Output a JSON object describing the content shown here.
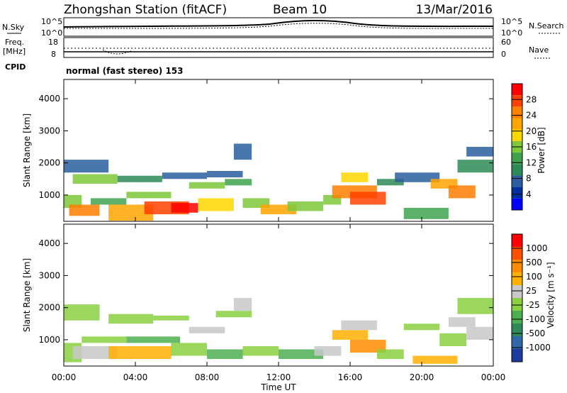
{
  "header": {
    "station": "Zhongshan Station (fitACF)",
    "beam": "Beam 10",
    "date": "13/Mar/2016"
  },
  "summary": {
    "nsky_label": "N.Sky",
    "nsky_ticks": [
      "10^5",
      "10^0"
    ],
    "nsearch_label": "N.Search",
    "nsearch_ticks": [
      "10^5",
      "10^0"
    ],
    "freq_label_line1": "Freq.",
    "freq_label_line2": "[MHz]",
    "freq_ticks": [
      "18",
      "8"
    ],
    "nave_label": "Nave",
    "nave_ticks": [
      "60",
      "0"
    ],
    "cpid_label": "CPID",
    "cpid_text": "normal (fast stereo) 153"
  },
  "power_colorbar": {
    "label": "Power [dB]",
    "ticks": [
      "28",
      "24",
      "20",
      "16",
      "12",
      "8",
      "4"
    ],
    "colors": [
      "#0000ff",
      "#0030a0",
      "#2a5ea0",
      "#2e8b57",
      "#3fa34d",
      "#7cc83a",
      "#ffd700",
      "#ffa500",
      "#ff7f00",
      "#ff4000",
      "#ff0000"
    ]
  },
  "velocity_colorbar": {
    "label": "Velocity [m s⁻¹]",
    "ticks": [
      "1000",
      "500",
      "100",
      "25",
      "-25",
      "-100",
      "-500",
      "-1000"
    ],
    "colors": [
      "#1e3ca0",
      "#2e6aa8",
      "#2e8b57",
      "#4caf50",
      "#8ad040",
      "#c8c8c8",
      "#ffb000",
      "#ff8c00",
      "#ff5000",
      "#ff0000"
    ]
  },
  "axes": {
    "ylabel": "Slant Range [km]",
    "yticks": [
      "1000",
      "2000",
      "3000",
      "4000"
    ],
    "xticks": [
      "00:00",
      "04:00",
      "08:00",
      "12:00",
      "16:00",
      "20:00",
      "00:00"
    ],
    "xlabel": "Time UT"
  },
  "chart_data": [
    {
      "type": "heatmap",
      "name": "power",
      "xlim": [
        0,
        24
      ],
      "ylim": [
        180,
        4600
      ],
      "clim": [
        0,
        30
      ],
      "cells": [
        [
          0.0,
          1.0,
          600,
          1000,
          16
        ],
        [
          0.0,
          2.5,
          1700,
          2100,
          8
        ],
        [
          0.3,
          2.0,
          350,
          700,
          24
        ],
        [
          0.5,
          3.0,
          1350,
          1650,
          14
        ],
        [
          1.5,
          3.5,
          700,
          900,
          12
        ],
        [
          2.5,
          5.0,
          200,
          700,
          20
        ],
        [
          3.0,
          5.5,
          1400,
          1600,
          10
        ],
        [
          3.5,
          6.0,
          900,
          1100,
          16
        ],
        [
          4.5,
          7.0,
          400,
          800,
          26
        ],
        [
          5.5,
          8.0,
          1500,
          1700,
          8
        ],
        [
          6.0,
          7.5,
          450,
          750,
          28
        ],
        [
          7.0,
          9.0,
          1200,
          1400,
          14
        ],
        [
          7.5,
          9.5,
          500,
          900,
          18
        ],
        [
          8.0,
          10.0,
          1550,
          1750,
          8
        ],
        [
          9.0,
          10.5,
          1300,
          1500,
          12
        ],
        [
          9.5,
          10.5,
          2100,
          2600,
          6
        ],
        [
          10.0,
          11.5,
          600,
          900,
          14
        ],
        [
          11.0,
          13.0,
          400,
          700,
          20
        ],
        [
          12.5,
          14.5,
          500,
          800,
          16
        ],
        [
          14.5,
          15.5,
          700,
          1000,
          14
        ],
        [
          15.0,
          17.5,
          900,
          1300,
          22
        ],
        [
          15.5,
          17.0,
          1400,
          1700,
          18
        ],
        [
          16.0,
          18.0,
          700,
          1100,
          26
        ],
        [
          17.5,
          19.0,
          1300,
          1500,
          10
        ],
        [
          18.5,
          21.0,
          1400,
          1700,
          8
        ],
        [
          19.0,
          21.5,
          250,
          600,
          12
        ],
        [
          20.5,
          22.0,
          1200,
          1500,
          20
        ],
        [
          21.5,
          23.0,
          900,
          1300,
          24
        ],
        [
          22.0,
          24.0,
          1700,
          2100,
          10
        ],
        [
          22.5,
          24.0,
          2200,
          2500,
          8
        ]
      ]
    },
    {
      "type": "heatmap",
      "name": "velocity",
      "xlim": [
        0,
        24
      ],
      "ylim": [
        180,
        4600
      ],
      "clim": [
        -1000,
        1000
      ],
      "cells": [
        [
          0.0,
          2.0,
          1600,
          2100,
          10
        ],
        [
          0.0,
          1.0,
          300,
          900,
          100
        ],
        [
          0.5,
          3.0,
          400,
          800,
          -100
        ],
        [
          1.0,
          3.5,
          900,
          1100,
          100
        ],
        [
          2.5,
          5.0,
          1500,
          1800,
          0
        ],
        [
          2.5,
          6.0,
          400,
          800,
          -300
        ],
        [
          3.5,
          6.5,
          900,
          1100,
          200
        ],
        [
          5.0,
          7.0,
          1600,
          1750,
          10
        ],
        [
          6.0,
          8.0,
          500,
          900,
          100
        ],
        [
          7.0,
          9.0,
          1200,
          1400,
          -50
        ],
        [
          8.0,
          10.0,
          400,
          700,
          200
        ],
        [
          8.5,
          10.5,
          1700,
          1900,
          0
        ],
        [
          9.5,
          10.5,
          1900,
          2300,
          -200
        ],
        [
          10.0,
          12.0,
          500,
          800,
          150
        ],
        [
          12.0,
          14.5,
          400,
          700,
          200
        ],
        [
          14.0,
          15.5,
          500,
          800,
          -100
        ],
        [
          15.0,
          17.0,
          1000,
          1300,
          -300
        ],
        [
          15.5,
          17.5,
          1300,
          1600,
          -200
        ],
        [
          16.0,
          18.0,
          600,
          1000,
          -500
        ],
        [
          17.5,
          19.0,
          400,
          700,
          100
        ],
        [
          19.0,
          21.0,
          1300,
          1500,
          0
        ],
        [
          19.5,
          22.0,
          250,
          500,
          -300
        ],
        [
          21.0,
          22.5,
          800,
          1200,
          100
        ],
        [
          21.5,
          23.0,
          1400,
          1700,
          -100
        ],
        [
          22.0,
          24.0,
          1800,
          2300,
          0
        ],
        [
          22.5,
          24.0,
          1000,
          1400,
          -200
        ]
      ]
    }
  ]
}
